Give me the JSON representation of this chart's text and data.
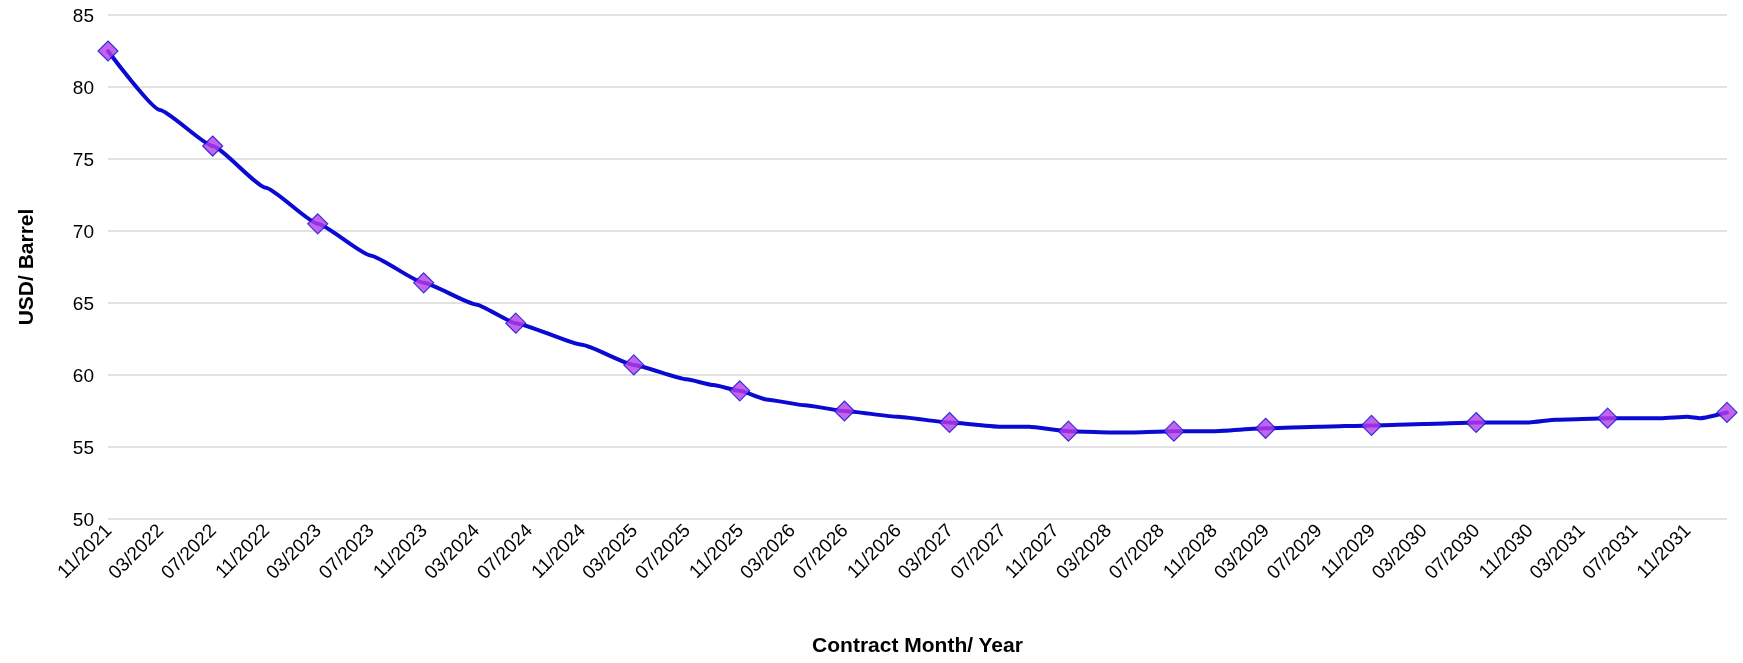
{
  "chart_data": {
    "type": "line",
    "xlabel": "Contract Month/ Year",
    "ylabel": "USD/ Barrel",
    "ylim": [
      50,
      85
    ],
    "yticks": [
      50,
      55,
      60,
      65,
      70,
      75,
      80,
      85
    ],
    "xlim": [
      "2021-11",
      "2032-02"
    ],
    "xticks": [
      {
        "value": "2021-11",
        "label": "11/2021"
      },
      {
        "value": "2022-03",
        "label": "03/2022"
      },
      {
        "value": "2022-07",
        "label": "07/2022"
      },
      {
        "value": "2022-11",
        "label": "11/2022"
      },
      {
        "value": "2023-03",
        "label": "03/2023"
      },
      {
        "value": "2023-07",
        "label": "07/2023"
      },
      {
        "value": "2023-11",
        "label": "11/2023"
      },
      {
        "value": "2024-03",
        "label": "03/2024"
      },
      {
        "value": "2024-07",
        "label": "07/2024"
      },
      {
        "value": "2024-11",
        "label": "11/2024"
      },
      {
        "value": "2025-03",
        "label": "03/2025"
      },
      {
        "value": "2025-07",
        "label": "07/2025"
      },
      {
        "value": "2025-11",
        "label": "11/2025"
      },
      {
        "value": "2026-03",
        "label": "03/2026"
      },
      {
        "value": "2026-07",
        "label": "07/2026"
      },
      {
        "value": "2026-11",
        "label": "11/2026"
      },
      {
        "value": "2027-03",
        "label": "03/2027"
      },
      {
        "value": "2027-07",
        "label": "07/2027"
      },
      {
        "value": "2027-11",
        "label": "11/2027"
      },
      {
        "value": "2028-03",
        "label": "03/2028"
      },
      {
        "value": "2028-07",
        "label": "07/2028"
      },
      {
        "value": "2028-11",
        "label": "11/2028"
      },
      {
        "value": "2029-03",
        "label": "03/2029"
      },
      {
        "value": "2029-07",
        "label": "07/2029"
      },
      {
        "value": "2029-11",
        "label": "11/2029"
      },
      {
        "value": "2030-03",
        "label": "03/2030"
      },
      {
        "value": "2030-07",
        "label": "07/2030"
      },
      {
        "value": "2030-11",
        "label": "11/2030"
      },
      {
        "value": "2031-03",
        "label": "03/2031"
      },
      {
        "value": "2031-07",
        "label": "07/2031"
      },
      {
        "value": "2031-11",
        "label": "11/2031"
      }
    ],
    "grid": "y",
    "series": [
      {
        "color": "#0a0ad2",
        "marker": "none",
        "line_style": "solid",
        "x": [
          "2021-11",
          "2022-03",
          "2022-07",
          "2022-11",
          "2023-03",
          "2023-07",
          "2023-11",
          "2024-03",
          "2024-06",
          "2024-11",
          "2025-03",
          "2025-07",
          "2025-09",
          "2025-11",
          "2026-01",
          "2026-04",
          "2026-07",
          "2026-11",
          "2027-03",
          "2027-07",
          "2027-09",
          "2027-12",
          "2028-04",
          "2028-08",
          "2028-11",
          "2029-03",
          "2029-07",
          "2029-11",
          "2030-03",
          "2030-07",
          "2030-11",
          "2031-01",
          "2031-05",
          "2031-09",
          "2031-11",
          "2031-12",
          "2032-02"
        ],
        "values": [
          82.5,
          78.4,
          75.9,
          73.0,
          70.5,
          68.3,
          66.4,
          64.9,
          63.6,
          62.1,
          60.7,
          59.7,
          59.3,
          58.9,
          58.3,
          57.9,
          57.5,
          57.1,
          56.7,
          56.4,
          56.4,
          56.1,
          56.0,
          56.1,
          56.1,
          56.3,
          56.4,
          56.5,
          56.6,
          56.7,
          56.7,
          56.9,
          57.0,
          57.0,
          57.1,
          57.0,
          57.4
        ]
      },
      {
        "type": "scatter",
        "color": "#b53de8",
        "marker": "diamond",
        "x": [
          "2021-11",
          "2022-07",
          "2023-03",
          "2023-11",
          "2024-06",
          "2025-03",
          "2025-11",
          "2026-07",
          "2027-03",
          "2027-12",
          "2028-08",
          "2029-03",
          "2029-11",
          "2030-07",
          "2031-05",
          "2032-02"
        ],
        "values": [
          82.5,
          75.9,
          70.5,
          66.4,
          63.6,
          60.7,
          58.9,
          57.5,
          56.7,
          56.1,
          56.1,
          56.3,
          56.5,
          56.7,
          57.0,
          57.4
        ]
      }
    ]
  }
}
